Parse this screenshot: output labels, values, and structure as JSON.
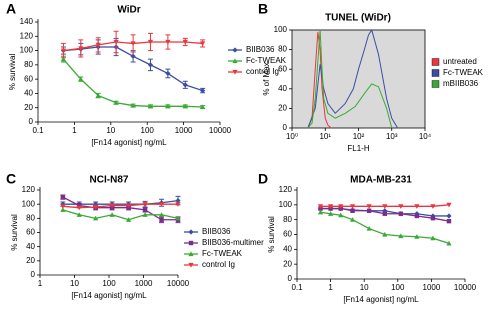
{
  "chart_data": [
    {
      "type": "line",
      "label": "A",
      "title": "WiDr",
      "xlabel": "[Fn14 agonist] ng/mL",
      "ylabel": "% survival",
      "xlog": true,
      "xlim": [
        0.1,
        10000
      ],
      "xticks": [
        0.1,
        1,
        10,
        100,
        1000,
        10000
      ],
      "ylim": [
        0,
        140
      ],
      "yticks": [
        0,
        20,
        40,
        60,
        80,
        100,
        120,
        140
      ],
      "legend": "right",
      "x": [
        0.5,
        1.5,
        4.5,
        14,
        41,
        123,
        370,
        1111,
        3333
      ],
      "series": [
        {
          "name": "BIIB036",
          "color": "#3b4ea0",
          "marker": "diamond",
          "values": [
            100,
            102,
            105,
            105,
            92,
            80,
            68,
            52,
            44
          ],
          "errors": [
            5,
            8,
            10,
            12,
            8,
            8,
            6,
            5,
            3
          ]
        },
        {
          "name": "Fc-TWEAK",
          "color": "#3aaa35",
          "marker": "triangle-up",
          "values": [
            88,
            60,
            37,
            27,
            23,
            22,
            22,
            22,
            21
          ],
          "errors": [
            4,
            3,
            3,
            2,
            2,
            2,
            2,
            2,
            2
          ]
        },
        {
          "name": "control Ig",
          "color": "#e8383d",
          "marker": "triangle-down",
          "values": [
            100,
            103,
            108,
            112,
            110,
            112,
            112,
            112,
            110
          ],
          "errors": [
            10,
            12,
            10,
            15,
            12,
            12,
            10,
            5,
            5
          ]
        }
      ]
    },
    {
      "type": "line",
      "label": "B",
      "title": "TUNEL (WiDr)",
      "xlabel": "FL1-H",
      "ylabel": "% of Max",
      "xlog": true,
      "xlim": [
        1,
        10000
      ],
      "xticks": [
        {
          "value": 1,
          "label": "10⁰"
        },
        {
          "value": 10,
          "label": "10¹"
        },
        {
          "value": 100,
          "label": "10²"
        },
        {
          "value": 1000,
          "label": "10³"
        },
        {
          "value": 10000,
          "label": "10⁴"
        }
      ],
      "ylim": [
        0,
        100
      ],
      "yticks": [
        0,
        20,
        40,
        60,
        80,
        100
      ],
      "legend": "right",
      "background": "#d9d9d9",
      "series": [
        {
          "name": "untreated",
          "color": "#e8383d",
          "x": [
            3,
            4,
            5,
            6,
            7,
            8,
            10,
            12,
            15
          ],
          "values": [
            0,
            10,
            60,
            98,
            80,
            40,
            10,
            3,
            0
          ]
        },
        {
          "name": "Fc-TWEAK",
          "color": "#3b4ea0",
          "x": [
            3,
            5,
            7,
            9,
            12,
            20,
            40,
            70,
            100,
            150,
            200,
            250,
            400,
            700,
            1000,
            1500
          ],
          "values": [
            0,
            20,
            65,
            40,
            25,
            15,
            25,
            40,
            60,
            80,
            95,
            100,
            75,
            30,
            10,
            0
          ]
        },
        {
          "name": "mBIIB036",
          "color": "#3aaa35",
          "x": [
            3,
            4,
            5,
            7,
            8,
            9,
            12,
            20,
            40,
            80,
            150,
            250,
            400,
            700,
            1000
          ],
          "values": [
            0,
            5,
            30,
            100,
            60,
            30,
            15,
            10,
            15,
            22,
            35,
            45,
            42,
            20,
            0
          ]
        }
      ]
    },
    {
      "type": "line",
      "label": "C",
      "title": "NCI-N87",
      "xlabel": "[Fn14 agonist] ng/mL",
      "ylabel": "% survival",
      "xlog": true,
      "xlim": [
        1,
        10000
      ],
      "xticks": [
        1,
        10,
        100,
        1000,
        10000
      ],
      "ylim": [
        0,
        120
      ],
      "yticks": [
        0,
        20,
        40,
        60,
        80,
        100,
        120
      ],
      "legend": "lower right",
      "x": [
        4.6,
        13.7,
        41,
        123,
        370,
        1111,
        3333,
        10000
      ],
      "series": [
        {
          "name": "BIIB036",
          "color": "#3b4ea0",
          "marker": "diamond",
          "values": [
            100,
            100,
            100,
            100,
            100,
            100,
            102,
            105
          ],
          "errors": [
            3,
            3,
            3,
            3,
            3,
            4,
            5,
            6
          ]
        },
        {
          "name": "BIIB036-multimer",
          "color": "#7b2d8e",
          "marker": "square",
          "values": [
            110,
            98,
            95,
            95,
            95,
            92,
            78,
            78
          ],
          "errors": [
            3,
            3,
            3,
            3,
            3,
            3,
            4,
            4
          ]
        },
        {
          "name": "Fc-TWEAK",
          "color": "#3aaa35",
          "marker": "triangle-up",
          "values": [
            92,
            85,
            80,
            85,
            78,
            85,
            85,
            80
          ]
        },
        {
          "name": "control Ig",
          "color": "#e8383d",
          "marker": "triangle-down",
          "values": [
            97,
            95,
            96,
            98,
            98,
            100,
            100,
            100
          ]
        }
      ]
    },
    {
      "type": "line",
      "label": "D",
      "title": "MDA-MB-231",
      "xlabel": "[Fn14 agonist] ng/mL",
      "ylabel": "% survival",
      "xlog": true,
      "xlim": [
        0.1,
        10000
      ],
      "xticks": [
        0.1,
        1,
        10,
        100,
        1000,
        10000
      ],
      "ylim": [
        0,
        120
      ],
      "yticks": [
        0,
        20,
        40,
        60,
        80,
        100,
        120
      ],
      "x": [
        0.5,
        1,
        2,
        4.5,
        14,
        41,
        123,
        370,
        1111,
        3333
      ],
      "series": [
        {
          "name": "BIIB036",
          "color": "#3b4ea0",
          "marker": "diamond",
          "values": [
            95,
            95,
            95,
            93,
            92,
            92,
            88,
            88,
            85,
            85
          ]
        },
        {
          "name": "BIIB036-multimer",
          "color": "#7b2d8e",
          "marker": "square",
          "values": [
            95,
            95,
            95,
            92,
            92,
            88,
            88,
            85,
            82,
            78
          ]
        },
        {
          "name": "Fc-TWEAK",
          "color": "#3aaa35",
          "marker": "triangle-up",
          "values": [
            90,
            88,
            86,
            80,
            68,
            60,
            58,
            57,
            55,
            48
          ]
        },
        {
          "name": "control Ig",
          "color": "#e8383d",
          "marker": "triangle-down",
          "values": [
            98,
            98,
            98,
            98,
            98,
            98,
            98,
            98,
            98,
            100
          ]
        }
      ]
    }
  ]
}
